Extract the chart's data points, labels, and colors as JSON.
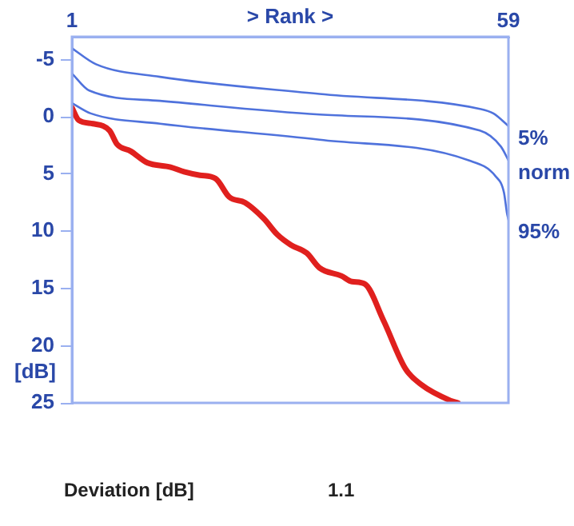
{
  "chart_data": {
    "type": "line",
    "xlabel": "> Rank >",
    "ylabel": "[dB]",
    "xlim": [
      1,
      59
    ],
    "xticks": [
      1,
      59
    ],
    "ylim": [
      25,
      -7
    ],
    "yticks": [
      -5,
      0,
      5,
      10,
      15,
      20,
      25
    ],
    "grid": false,
    "legend": false,
    "marker": "none",
    "line_style": "solid",
    "annotations": [
      "Deviation [dB]",
      "1.1"
    ],
    "series": [
      {
        "name": "5%",
        "color": "#4f72dc",
        "x": [
          1,
          4.2,
          12.7,
          33.9,
          55.2,
          57,
          59
        ],
        "values": [
          -6.0,
          -4.6,
          -3.5,
          -2.0,
          -0.7,
          -0.3,
          0.8
        ]
      },
      {
        "name": "norm",
        "color": "#4f72dc",
        "x": [
          1,
          3.3,
          12.7,
          33.9,
          55.2,
          58,
          59
        ],
        "values": [
          -3.8,
          -2.3,
          -1.4,
          -0.2,
          1.2,
          2.6,
          3.8
        ]
      },
      {
        "name": "95%",
        "color": "#4f72dc",
        "x": [
          1,
          3.5,
          12.7,
          33.9,
          53.7,
          57.3,
          58.4,
          58.8,
          59
        ],
        "values": [
          -1.2,
          -0.3,
          0.6,
          2.0,
          3.8,
          5.2,
          6.6,
          8.4,
          9.0
        ]
      },
      {
        "color": "#e0201e",
        "x": [
          1,
          1.9,
          3.8,
          6,
          7,
          8.8,
          11,
          14.1,
          15.9,
          18,
          20.1,
          21.9,
          24,
          26.5,
          28.3,
          30.1,
          32.2,
          33.9,
          36.8,
          38.2,
          39.9,
          42.4,
          45.3,
          47.4,
          51.3,
          52.3
        ],
        "values": [
          -0.8,
          0.3,
          0.6,
          1.2,
          2.4,
          3.0,
          4.0,
          4.4,
          4.8,
          5.1,
          5.4,
          7.0,
          7.5,
          8.9,
          10.3,
          11.2,
          11.9,
          13.2,
          13.9,
          14.4,
          14.6,
          17.8,
          22.0,
          23.4,
          24.8,
          25
        ]
      }
    ]
  }
}
